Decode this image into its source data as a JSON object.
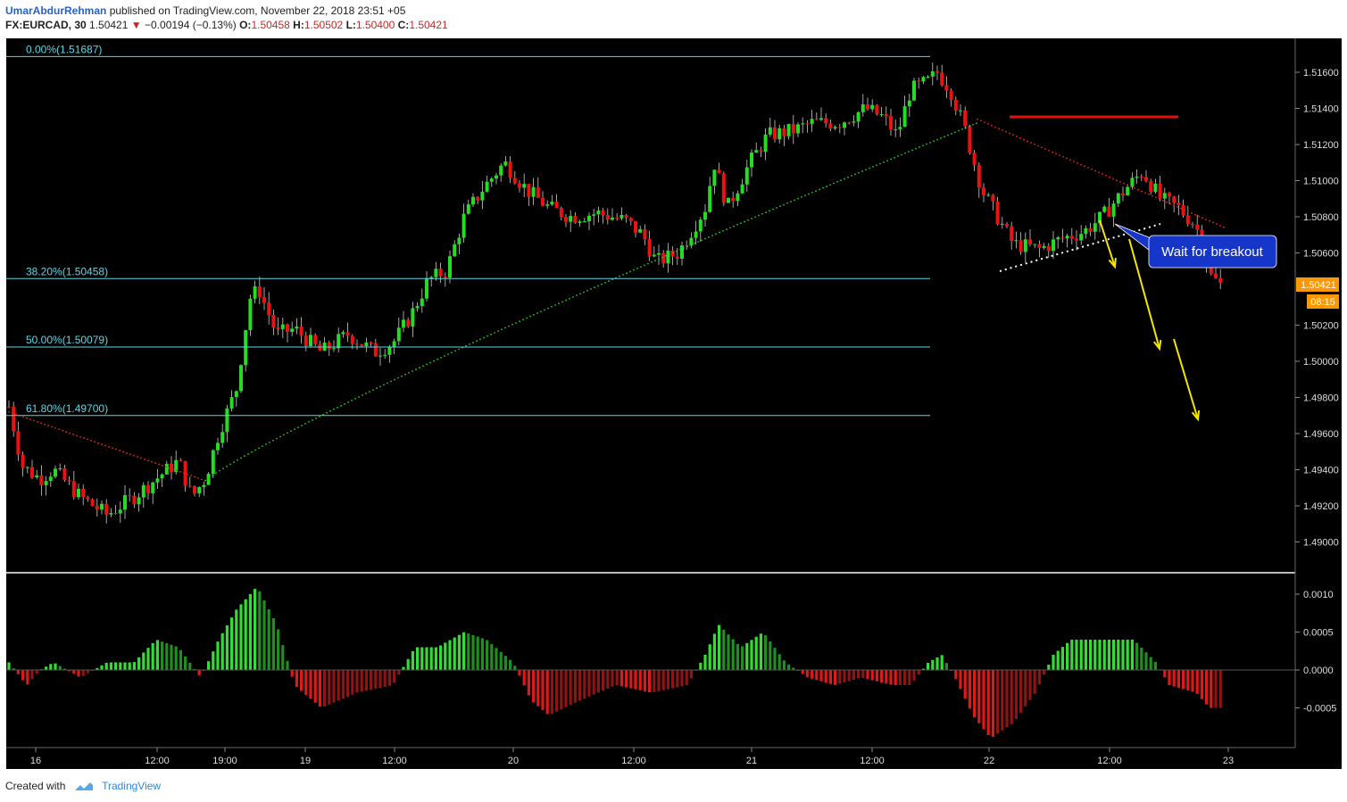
{
  "header": {
    "author": "UmarAbdurRehman",
    "published": "published on TradingView.com, November 22, 2018 23:51 +05",
    "symbol": "FX:EURCAD, 30",
    "last": "1.50421",
    "change": "−0.00194 (−0.13%)",
    "open_label": "O:",
    "open": "1.50458",
    "high_label": "H:",
    "high": "1.50502",
    "low_label": "L:",
    "low": "1.50400",
    "close_label": "C:",
    "close": "1.50421"
  },
  "footer": {
    "created_with": "Created with",
    "brand": "TradingView"
  },
  "chart_data": [
    {
      "type": "candlestick",
      "symbol": "FX:EURCAD",
      "interval": "30",
      "y_ticks": [
        "1.51600",
        "1.51400",
        "1.51200",
        "1.51000",
        "1.50800",
        "1.50600",
        "1.50200",
        "1.50000",
        "1.49800",
        "1.49600",
        "1.49400",
        "1.49200",
        "1.49000"
      ],
      "ylim": [
        1.488,
        1.519
      ],
      "x_ticks": [
        "16",
        "12:00",
        "19:00",
        "19",
        "12:00",
        "20",
        "12:00",
        "21",
        "12:00",
        "22",
        "12:00",
        "23"
      ],
      "last_price_label": "1.50421",
      "countdown_label": "08:15",
      "fibonacci": [
        {
          "label": "0.00%(1.51687)",
          "value": 1.51687
        },
        {
          "label": "38.20%(1.50458)",
          "value": 1.50458
        },
        {
          "label": "50.00%(1.50079)",
          "value": 1.50079
        },
        {
          "label": "61.80%(1.49700)",
          "value": 1.497
        }
      ],
      "annotation": "Wait for breakout",
      "colors": {
        "up": "#22dd22",
        "down": "#ee1111",
        "background": "#000000",
        "fib": "#5ad8e6",
        "resistance": "#e01010",
        "arrow": "#f5e600"
      }
    },
    {
      "type": "bar",
      "name": "histogram",
      "y_ticks": [
        "0.0010",
        "0.0005",
        "0.0000",
        "-0.0005"
      ],
      "ylim": [
        -0.00105,
        0.00118
      ]
    }
  ]
}
